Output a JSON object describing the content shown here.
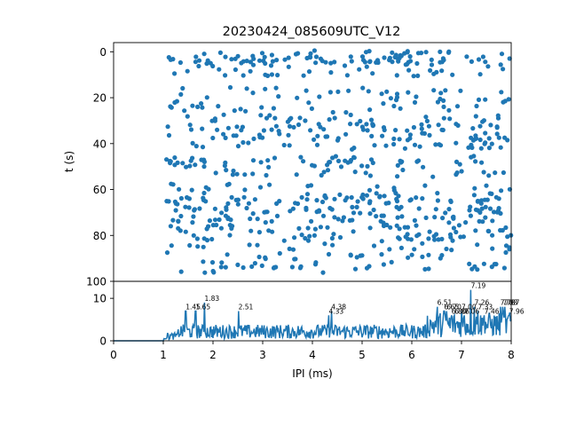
{
  "chart_data": [
    {
      "type": "scatter",
      "title": "20230424_085609UTC_V12",
      "xlabel": "",
      "ylabel": "t (s)",
      "xlim": [
        0,
        8
      ],
      "ylim": [
        100,
        -4
      ],
      "y_inverted": true,
      "y_ticks": [
        "0",
        "20",
        "40",
        "60",
        "80",
        "100"
      ],
      "x_ticks": [],
      "color": "#1f77b4",
      "x_range_of_points": [
        1.05,
        8.0
      ],
      "row_density": [
        {
          "t": 1,
          "density": 0.55
        },
        {
          "t": 3,
          "density": 0.75
        },
        {
          "t": 5,
          "density": 0.65
        },
        {
          "t": 9,
          "density": 0.5
        },
        {
          "t": 17,
          "density": 0.4
        },
        {
          "t": 21,
          "density": 0.4
        },
        {
          "t": 25,
          "density": 0.4
        },
        {
          "t": 29,
          "density": 0.5
        },
        {
          "t": 33,
          "density": 0.85
        },
        {
          "t": 37,
          "density": 0.75
        },
        {
          "t": 41,
          "density": 0.55
        },
        {
          "t": 47,
          "density": 0.45
        },
        {
          "t": 49,
          "density": 0.6
        },
        {
          "t": 53,
          "density": 0.45
        },
        {
          "t": 59,
          "density": 0.4
        },
        {
          "t": 63,
          "density": 0.6
        },
        {
          "t": 65,
          "density": 0.75
        },
        {
          "t": 69,
          "density": 0.9
        },
        {
          "t": 73,
          "density": 0.85
        },
        {
          "t": 77,
          "density": 0.75
        },
        {
          "t": 81,
          "density": 0.7
        },
        {
          "t": 85,
          "density": 0.4
        },
        {
          "t": 89,
          "density": 0.4
        },
        {
          "t": 93,
          "density": 0.4
        },
        {
          "t": 95,
          "density": 0.3
        }
      ]
    },
    {
      "type": "line",
      "title": "",
      "xlabel": "IPI (ms)",
      "ylabel": "",
      "xlim": [
        0,
        8
      ],
      "ylim": [
        0,
        14
      ],
      "x_ticks": [
        "0",
        "1",
        "2",
        "3",
        "4",
        "5",
        "6",
        "7",
        "8"
      ],
      "y_ticks": [
        "0",
        "10"
      ],
      "color": "#1f77b4",
      "baseline_until": 1.0,
      "peaks": [
        {
          "x": 1.45,
          "y": 7.0,
          "label": "1.45"
        },
        {
          "x": 1.65,
          "y": 7.0,
          "label": "1.65"
        },
        {
          "x": 1.83,
          "y": 9.0,
          "label": "1.83"
        },
        {
          "x": 2.51,
          "y": 7.0,
          "label": "2.51"
        },
        {
          "x": 4.33,
          "y": 6.0,
          "label": "4.33"
        },
        {
          "x": 4.38,
          "y": 7.0,
          "label": "4.38"
        },
        {
          "x": 6.51,
          "y": 8.0,
          "label": "6.51"
        },
        {
          "x": 6.65,
          "y": 7.0,
          "label": "6.65"
        },
        {
          "x": 6.7,
          "y": 7.0,
          "label": "6.70"
        },
        {
          "x": 6.8,
          "y": 6.0,
          "label": "6.80"
        },
        {
          "x": 6.86,
          "y": 6.0,
          "label": "6.86"
        },
        {
          "x": 7.0,
          "y": 7.0,
          "label": "7.00"
        },
        {
          "x": 7.06,
          "y": 6.0,
          "label": "7.06"
        },
        {
          "x": 7.19,
          "y": 12.0,
          "label": "7.19"
        },
        {
          "x": 7.26,
          "y": 8.0,
          "label": "7.26"
        },
        {
          "x": 7.33,
          "y": 7.0,
          "label": "7.33"
        },
        {
          "x": 7.46,
          "y": 6.0,
          "label": "7.46"
        },
        {
          "x": 7.78,
          "y": 8.0,
          "label": "7.78"
        },
        {
          "x": 7.83,
          "y": 8.0,
          "label": "7.83"
        },
        {
          "x": 7.87,
          "y": 8.0,
          "label": "7.87"
        },
        {
          "x": 7.96,
          "y": 6.0,
          "label": "7.96"
        }
      ]
    }
  ]
}
